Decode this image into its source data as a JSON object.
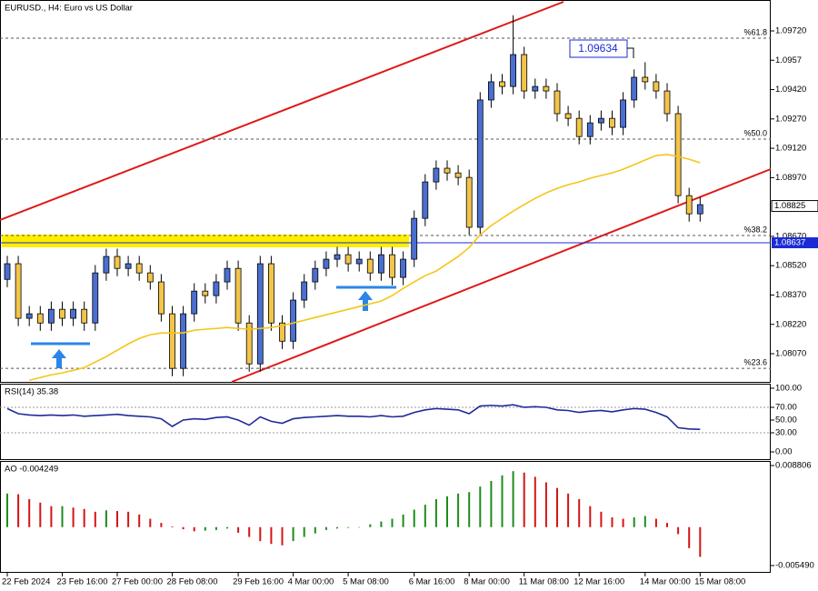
{
  "chart_data": [
    {
      "type": "candlestick",
      "title": "EURUSD., H4:  Euro vs US Dollar",
      "categories": [
        "22 Feb 2024",
        null,
        null,
        null,
        null,
        "23 Feb 16:00",
        null,
        null,
        null,
        null,
        "27 Feb 00:00",
        null,
        null,
        null,
        null,
        "28 Feb 08:00",
        null,
        null,
        null,
        null,
        null,
        "29 Feb 16:00",
        null,
        null,
        null,
        null,
        "4 Mar 00:00",
        null,
        null,
        null,
        null,
        "5 Mar 08:00",
        null,
        null,
        null,
        null,
        null,
        "6 Mar 16:00",
        null,
        null,
        null,
        null,
        "8 Mar 00:00",
        null,
        null,
        null,
        null,
        "11 Mar 08:00",
        null,
        null,
        null,
        null,
        "12 Mar 16:00",
        null,
        null,
        null,
        null,
        null,
        "14 Mar 00:00",
        null,
        null,
        null,
        null,
        "15 Mar 08:00"
      ],
      "open": [
        1.0845,
        1.0853,
        1.08251,
        1.08274,
        1.08227,
        1.08297,
        1.08251,
        1.08297,
        1.08227,
        1.08483,
        1.08567,
        1.08506,
        1.0853,
        1.08483,
        1.08437,
        1.08274,
        1.07995,
        1.08274,
        1.0839,
        1.08367,
        1.08437,
        1.08506,
        1.08227,
        1.08018,
        1.0853,
        1.08227,
        1.08134,
        1.08344,
        1.08437,
        1.08506,
        1.08553,
        1.08576,
        1.0853,
        1.08553,
        1.08483,
        1.08576,
        1.0846,
        1.08553,
        1.08762,
        1.08948,
        1.09018,
        1.08994,
        1.08971,
        1.08716,
        1.09367,
        1.0946,
        1.09436,
        1.09599,
        1.09413,
        1.09436,
        1.09413,
        1.09297,
        1.09273,
        1.0918,
        1.0925,
        1.09273,
        1.09227,
        1.09367,
        1.09483,
        1.0946,
        1.09413,
        1.09297,
        1.08878,
        1.08785
      ],
      "high": [
        1.0857,
        1.0857,
        1.08314,
        1.08314,
        1.08337,
        1.08337,
        1.08337,
        1.08337,
        1.08523,
        1.08607,
        1.08607,
        1.0857,
        1.0857,
        1.08523,
        1.08477,
        1.08314,
        1.08314,
        1.0843,
        1.0843,
        1.08477,
        1.08546,
        1.08546,
        1.08267,
        1.0857,
        1.0857,
        1.08267,
        1.08384,
        1.08477,
        1.08546,
        1.08593,
        1.08616,
        1.08616,
        1.08593,
        1.08593,
        1.08616,
        1.08616,
        1.08593,
        1.08802,
        1.08988,
        1.09058,
        1.09058,
        1.09034,
        1.09011,
        1.09407,
        1.095,
        1.095,
        1.098,
        1.09639,
        1.09476,
        1.09476,
        1.09453,
        1.09337,
        1.09313,
        1.0929,
        1.09313,
        1.09313,
        1.09407,
        1.09523,
        1.0956,
        1.095,
        1.09453,
        1.09337,
        1.08918,
        1.08872
      ],
      "low": [
        1.0841,
        1.08211,
        1.08211,
        1.08187,
        1.08187,
        1.08211,
        1.08211,
        1.08187,
        1.08187,
        1.08443,
        1.08466,
        1.08466,
        1.08443,
        1.08397,
        1.08234,
        1.07955,
        1.07955,
        1.08234,
        1.08327,
        1.08327,
        1.08397,
        1.08187,
        1.07978,
        1.07978,
        1.08187,
        1.08094,
        1.08094,
        1.08304,
        1.08397,
        1.08466,
        1.08513,
        1.0849,
        1.0849,
        1.08443,
        1.08443,
        1.0842,
        1.0842,
        1.08513,
        1.08722,
        1.08908,
        1.08954,
        1.08931,
        1.08676,
        1.08676,
        1.09327,
        1.09396,
        1.09396,
        1.09373,
        1.09373,
        1.09373,
        1.09257,
        1.09233,
        1.0914,
        1.0914,
        1.0921,
        1.09187,
        1.09187,
        1.09327,
        1.0942,
        1.09373,
        1.09257,
        1.08838,
        1.08745,
        1.08745
      ],
      "close": [
        1.0853,
        1.08251,
        1.08274,
        1.08227,
        1.08297,
        1.08251,
        1.08297,
        1.08227,
        1.08483,
        1.08567,
        1.08506,
        1.0853,
        1.08483,
        1.08437,
        1.08274,
        1.07995,
        1.08274,
        1.0839,
        1.08367,
        1.08437,
        1.08506,
        1.08227,
        1.08018,
        1.0853,
        1.08227,
        1.08134,
        1.08344,
        1.08437,
        1.08506,
        1.08553,
        1.08576,
        1.0853,
        1.08553,
        1.08483,
        1.08576,
        1.0846,
        1.08553,
        1.08762,
        1.08948,
        1.09018,
        1.08994,
        1.08971,
        1.08716,
        1.09367,
        1.0946,
        1.09436,
        1.09599,
        1.09413,
        1.09436,
        1.09413,
        1.09297,
        1.09273,
        1.0918,
        1.0925,
        1.09273,
        1.09227,
        1.09367,
        1.09483,
        1.0946,
        1.09413,
        1.09297,
        1.08878,
        1.08785,
        1.08832
      ],
      "bull_color": "#4a6fd0",
      "bear_color": "#f2c44a",
      "moving_average": {
        "color": "#f5c518",
        "values": [
          null,
          null,
          1.07934,
          1.07948,
          1.07962,
          1.07972,
          1.07985,
          1.07999,
          1.08027,
          1.08055,
          1.08088,
          1.0812,
          1.08148,
          1.08167,
          1.08176,
          1.08176,
          1.08176,
          1.0819,
          1.08195,
          1.08199,
          1.08204,
          1.08199,
          1.08195,
          1.08199,
          1.08204,
          1.08213,
          1.08227,
          1.08241,
          1.08255,
          1.08269,
          1.08283,
          1.08297,
          1.08311,
          1.08325,
          1.08339,
          1.08367,
          1.08404,
          1.08437,
          1.08469,
          1.08492,
          1.0853,
          1.08567,
          1.08613,
          1.08678,
          1.08725,
          1.08762,
          1.08799,
          1.08832,
          1.08864,
          1.08892,
          1.08915,
          1.08934,
          1.08948,
          1.08967,
          1.08981,
          1.08994,
          1.09013,
          1.09036,
          1.0906,
          1.09083,
          1.09088,
          1.09078,
          1.09064,
          1.09046
        ]
      },
      "ylim": [
        1.07926,
        1.09878
      ],
      "yticks": [
        {
          "value": 1.0972,
          "label": "1.09720"
        },
        1.0957,
        {
          "value": 1.0942,
          "label": "1.09420"
        },
        {
          "value": 1.0927,
          "label": "1.09270"
        },
        {
          "value": 1.0912,
          "label": "1.09120"
        },
        {
          "value": 1.0897,
          "label": "1.08970"
        },
        {
          "value": 1.0867,
          "label": "1.08670"
        },
        {
          "value": 1.0852,
          "label": "1.08520"
        },
        {
          "value": 1.0837,
          "label": "1.08370"
        },
        {
          "value": 1.0822,
          "label": "1.08220"
        },
        {
          "value": 1.0807,
          "label": "1.08070"
        }
      ],
      "levels": [
        {
          "value": 1.09683,
          "label": "%61.8"
        },
        {
          "value": 1.09167,
          "label": "%50.0"
        },
        {
          "value": 1.08674,
          "label": "%38.2"
        },
        {
          "value": 1.07995,
          "label": "%23.6"
        }
      ],
      "bid_price": 1.08825,
      "horizontal_line": 1.08637,
      "horizontal_line_color": "#1a2bd6",
      "annotation": 1.09634
    },
    {
      "type": "line",
      "title": "RSI(14) 35.38",
      "color": "#1f2a9a",
      "values": [
        68,
        60,
        58,
        57,
        58,
        57,
        58,
        56,
        57,
        58,
        59,
        57,
        56,
        55,
        52,
        40,
        50,
        52,
        51,
        54,
        55,
        50,
        42,
        55,
        48,
        45,
        52,
        54,
        55,
        56,
        57,
        56,
        56,
        55,
        57,
        55,
        56,
        62,
        66,
        68,
        67,
        66,
        60,
        72,
        73,
        72,
        74,
        70,
        71,
        70,
        66,
        65,
        62,
        64,
        65,
        63,
        66,
        68,
        67,
        62,
        55,
        38,
        36,
        35.38
      ],
      "ylim": [
        -11.4,
        107.1
      ],
      "yticks": [
        {
          "value": 100,
          "label": "100.00"
        },
        {
          "value": 70,
          "label": "70.00"
        },
        {
          "value": 50,
          "label": "50.00"
        },
        {
          "value": 30,
          "label": "30.00"
        },
        {
          "value": 0,
          "label": "0.00"
        }
      ],
      "level_lines": [
        70,
        30
      ]
    },
    {
      "type": "bar",
      "title": "AO -0.004249",
      "up_color": "#1c8c1c",
      "down_color": "#d41414",
      "values": [
        0.0048,
        0.0047,
        0.004,
        0.0035,
        0.003,
        0.003,
        0.0028,
        0.0026,
        0.0022,
        0.0024,
        0.0023,
        0.0022,
        0.0018,
        0.0012,
        0.0006,
        0.0001,
        -0.0003,
        -0.0006,
        -0.0005,
        -0.0004,
        -0.0002,
        -0.0008,
        -0.0014,
        -0.002,
        -0.0024,
        -0.0026,
        -0.002,
        -0.0014,
        -0.0009,
        -0.0004,
        -0.0002,
        -0.0001,
        0,
        0.0004,
        0.0008,
        0.0012,
        0.0018,
        0.0025,
        0.0032,
        0.004,
        0.0044,
        0.0048,
        0.005,
        0.0058,
        0.0066,
        0.0074,
        0.008,
        0.0078,
        0.0072,
        0.0064,
        0.0056,
        0.0048,
        0.004,
        0.003,
        0.0022,
        0.0014,
        0.0012,
        0.0014,
        0.0016,
        0.0012,
        0.0006,
        -0.001,
        -0.003,
        -0.004249
      ],
      "ylim": [
        -0.00653,
        0.009326
      ],
      "yticks": [
        0.008806,
        {
          "value": -0.00549,
          "label": "-0.005490"
        }
      ]
    }
  ]
}
